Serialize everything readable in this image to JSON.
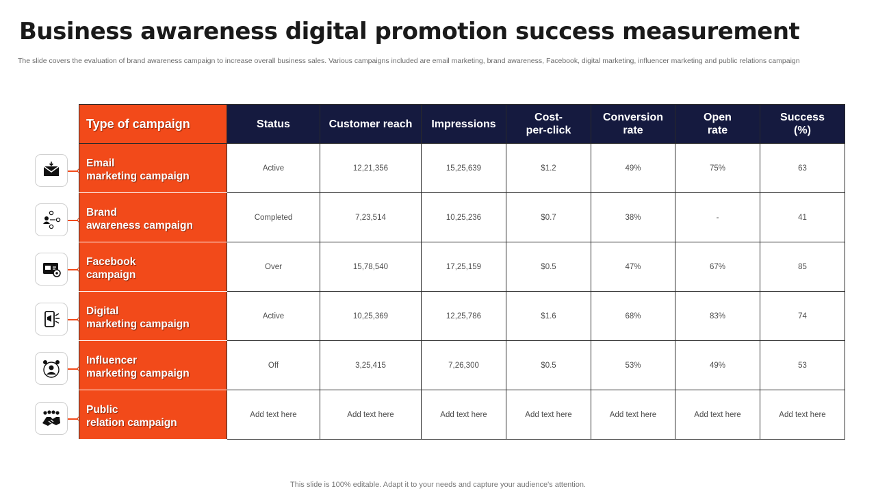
{
  "title": "Business awareness digital promotion success measurement",
  "subtitle": "The slide covers the evaluation of brand awareness campaign to increase overall business sales. Various campaigns included are email marketing, brand awareness, Facebook, digital marketing, influencer marketing and public relations campaign",
  "table": {
    "headers": {
      "campaign": "Type of campaign",
      "status": "Status",
      "reach": "Customer reach",
      "impressions": "Impressions",
      "cpc_1": "Cost-",
      "cpc_2": "per-click",
      "conversion_1": "Conversion",
      "conversion_2": "rate",
      "open_1": "Open",
      "open_2": "rate",
      "success_1": "Success",
      "success_2": "(%)"
    },
    "rows": [
      {
        "name_1": "Email",
        "name_2": "marketing campaign",
        "icon": "envelope-icon",
        "status": "Active",
        "reach": "12,21,356",
        "impressions": "15,25,639",
        "cpc": "$1.2",
        "conversion": "49%",
        "open": "75%",
        "success": "63"
      },
      {
        "name_1": "Brand",
        "name_2": "awareness campaign",
        "icon": "people-network-icon",
        "status": "Completed",
        "reach": "7,23,514",
        "impressions": "10,25,236",
        "cpc": "$0.7",
        "conversion": "38%",
        "open": "-",
        "success": "41"
      },
      {
        "name_1": "Facebook",
        "name_2": "campaign",
        "icon": "screen-settings-icon",
        "status": "Over",
        "reach": "15,78,540",
        "impressions": "17,25,159",
        "cpc": "$0.5",
        "conversion": "47%",
        "open": "67%",
        "success": "85"
      },
      {
        "name_1": "Digital",
        "name_2": "marketing campaign",
        "icon": "phone-megaphone-icon",
        "status": "Active",
        "reach": "10,25,369",
        "impressions": "12,25,786",
        "cpc": "$1.6",
        "conversion": "68%",
        "open": "83%",
        "success": "74"
      },
      {
        "name_1": "Influencer",
        "name_2": "marketing campaign",
        "icon": "influencer-icon",
        "status": "Off",
        "reach": "3,25,415",
        "impressions": "7,26,300",
        "cpc": "$0.5",
        "conversion": "53%",
        "open": "49%",
        "success": "53"
      },
      {
        "name_1": "Public",
        "name_2": "relation campaign",
        "icon": "handshake-group-icon",
        "status": "Add text here",
        "reach": "Add text here",
        "impressions": "Add text here",
        "cpc": "Add text here",
        "conversion": "Add text here",
        "open": "Add text here",
        "success": "Add text here"
      }
    ]
  },
  "footer": "This slide is 100% editable. Adapt it to your needs and capture your audience's attention.",
  "colors": {
    "accent": "#f24a1a",
    "header_navy": "#151a3f",
    "title_text": "#1a1a1a"
  }
}
